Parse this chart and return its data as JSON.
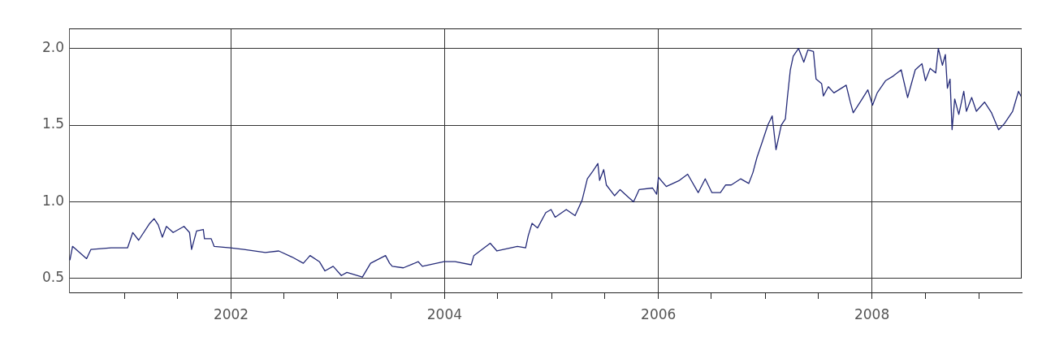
{
  "chart_data": {
    "type": "line",
    "xlim": [
      "2000-06-26",
      "2009-05-27"
    ],
    "ylim": [
      0.41,
      2.13
    ],
    "yticks": [
      {
        "value": 0.5,
        "label": "0.5"
      },
      {
        "value": 1.0,
        "label": "1.0"
      },
      {
        "value": 1.5,
        "label": "1.5"
      },
      {
        "value": 2.0,
        "label": "2.0"
      }
    ],
    "xticks": [
      {
        "value": "2001-01-01",
        "label": null
      },
      {
        "value": "2001-07-01",
        "label": null
      },
      {
        "value": "2002-01-01",
        "label": "2002"
      },
      {
        "value": "2002-07-01",
        "label": null
      },
      {
        "value": "2003-01-01",
        "label": null
      },
      {
        "value": "2003-07-01",
        "label": null
      },
      {
        "value": "2004-01-01",
        "label": "2004"
      },
      {
        "value": "2004-07-01",
        "label": null
      },
      {
        "value": "2005-01-01",
        "label": null
      },
      {
        "value": "2005-07-01",
        "label": null
      },
      {
        "value": "2006-01-01",
        "label": "2006"
      },
      {
        "value": "2006-07-01",
        "label": null
      },
      {
        "value": "2007-01-01",
        "label": null
      },
      {
        "value": "2007-07-01",
        "label": null
      },
      {
        "value": "2008-01-01",
        "label": "2008"
      },
      {
        "value": "2008-07-01",
        "label": null
      },
      {
        "value": "2009-01-01",
        "label": null
      }
    ],
    "grid": true,
    "legend": false,
    "marker": "none",
    "line_style": "solid",
    "x": [
      "2000-06-29",
      "2000-07-08",
      "2000-08-25",
      "2000-09-09",
      "2000-11-17",
      "2001-01-12",
      "2001-01-30",
      "2001-02-19",
      "2001-03-29",
      "2001-04-13",
      "2001-04-27",
      "2001-05-11",
      "2001-05-25",
      "2001-06-17",
      "2001-07-24",
      "2001-08-12",
      "2001-08-19",
      "2001-09-05",
      "2001-09-28",
      "2001-10-02",
      "2001-10-25",
      "2001-11-04",
      "2001-12-29",
      "2002-02-14",
      "2002-04-28",
      "2002-06-13",
      "2002-07-29",
      "2002-09-05",
      "2002-09-28",
      "2002-10-30",
      "2002-11-18",
      "2002-12-16",
      "2003-01-13",
      "2003-02-01",
      "2003-03-26",
      "2003-04-23",
      "2003-06-13",
      "2003-06-27",
      "2003-07-06",
      "2003-08-13",
      "2003-10-03",
      "2003-10-17",
      "2003-12-30",
      "2004-02-06",
      "2004-04-01",
      "2004-04-10",
      "2004-06-05",
      "2004-06-28",
      "2004-09-06",
      "2004-10-04",
      "2004-10-13",
      "2004-10-26",
      "2004-11-14",
      "2004-12-12",
      "2004-12-30",
      "2005-01-13",
      "2005-02-20",
      "2005-03-22",
      "2005-04-15",
      "2005-05-03",
      "2005-05-22",
      "2005-06-08",
      "2005-06-14",
      "2005-06-28",
      "2005-07-07",
      "2005-08-04",
      "2005-08-23",
      "2005-09-20",
      "2005-10-08",
      "2005-10-27",
      "2005-12-12",
      "2005-12-26",
      "2006-01-01",
      "2006-01-28",
      "2006-03-14",
      "2006-04-11",
      "2006-05-17",
      "2006-06-10",
      "2006-07-03",
      "2006-08-01",
      "2006-08-19",
      "2006-09-07",
      "2006-10-09",
      "2006-11-06",
      "2006-11-20",
      "2006-12-04",
      "2006-12-22",
      "2007-01-10",
      "2007-01-25",
      "2007-02-07",
      "2007-02-25",
      "2007-03-11",
      "2007-03-18",
      "2007-03-28",
      "2007-04-07",
      "2007-04-25",
      "2007-05-13",
      "2007-05-27",
      "2007-06-15",
      "2007-06-24",
      "2007-07-13",
      "2007-07-19",
      "2007-08-05",
      "2007-08-24",
      "2007-10-05",
      "2007-10-19",
      "2007-10-29",
      "2007-11-25",
      "2007-12-18",
      "2008-01-03",
      "2008-01-19",
      "2008-02-17",
      "2008-03-14",
      "2008-04-10",
      "2008-05-02",
      "2008-05-28",
      "2008-06-20",
      "2008-07-02",
      "2008-07-18",
      "2008-08-06",
      "2008-08-15",
      "2008-08-29",
      "2008-09-08",
      "2008-09-15",
      "2008-09-24",
      "2008-10-01",
      "2008-10-10",
      "2008-10-24",
      "2008-11-10",
      "2008-11-19",
      "2008-12-07",
      "2008-12-23",
      "2009-01-20",
      "2009-02-13",
      "2009-03-09",
      "2009-03-29",
      "2009-04-26",
      "2009-05-16",
      "2009-05-27"
    ],
    "series": [
      {
        "color": "#242a78",
        "values": [
          0.62,
          0.71,
          0.63,
          0.69,
          0.7,
          0.7,
          0.8,
          0.75,
          0.86,
          0.89,
          0.85,
          0.77,
          0.84,
          0.8,
          0.84,
          0.8,
          0.69,
          0.81,
          0.82,
          0.76,
          0.76,
          0.71,
          0.7,
          0.69,
          0.67,
          0.68,
          0.64,
          0.6,
          0.65,
          0.61,
          0.55,
          0.58,
          0.52,
          0.54,
          0.51,
          0.6,
          0.65,
          0.6,
          0.58,
          0.57,
          0.61,
          0.58,
          0.61,
          0.61,
          0.59,
          0.65,
          0.73,
          0.68,
          0.71,
          0.7,
          0.78,
          0.86,
          0.83,
          0.93,
          0.95,
          0.9,
          0.95,
          0.91,
          1.01,
          1.15,
          1.2,
          1.25,
          1.14,
          1.21,
          1.11,
          1.04,
          1.08,
          1.03,
          1.0,
          1.08,
          1.09,
          1.05,
          1.16,
          1.1,
          1.14,
          1.18,
          1.06,
          1.15,
          1.06,
          1.06,
          1.11,
          1.11,
          1.15,
          1.12,
          1.19,
          1.29,
          1.39,
          1.5,
          1.56,
          1.34,
          1.5,
          1.54,
          1.68,
          1.86,
          1.95,
          2.0,
          1.91,
          1.99,
          1.98,
          1.8,
          1.77,
          1.69,
          1.75,
          1.71,
          1.76,
          1.65,
          1.58,
          1.66,
          1.73,
          1.63,
          1.71,
          1.79,
          1.82,
          1.86,
          1.68,
          1.86,
          1.9,
          1.79,
          1.87,
          1.84,
          2.0,
          1.89,
          1.96,
          1.74,
          1.8,
          1.47,
          1.67,
          1.57,
          1.72,
          1.59,
          1.68,
          1.59,
          1.65,
          1.58,
          1.47,
          1.51,
          1.59,
          1.72,
          1.68
        ]
      }
    ]
  }
}
